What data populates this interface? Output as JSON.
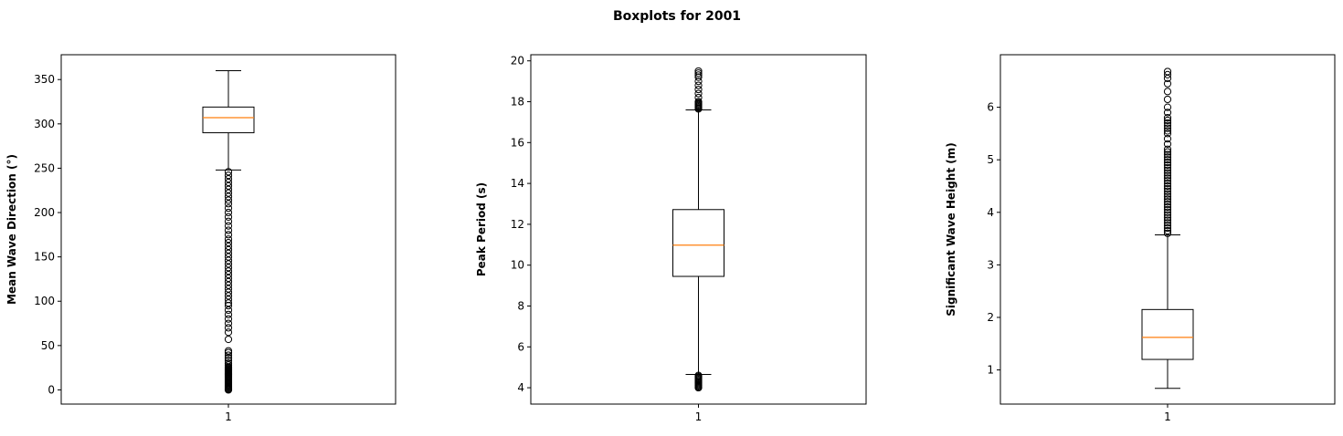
{
  "figure": {
    "title": "Boxplots for 2001"
  },
  "chart_data": [
    {
      "type": "boxplot",
      "ylabel": "Mean Wave Direction (°)",
      "categories": [
        "1"
      ],
      "ylim": [
        -16,
        378
      ],
      "yticks": [
        0,
        50,
        100,
        150,
        200,
        250,
        300,
        350
      ],
      "box": {
        "whisker_low": 248,
        "q1": 290,
        "median": 307,
        "q3": 319,
        "whisker_high": 360
      },
      "outliers": [
        0,
        1,
        2,
        3,
        4,
        5,
        6,
        7,
        8,
        9,
        10,
        11,
        12,
        13,
        14,
        15,
        16,
        17,
        18,
        19,
        20,
        21,
        22,
        23,
        24,
        25,
        26,
        28,
        30,
        33,
        36,
        39,
        42,
        44,
        57,
        65,
        70,
        75,
        80,
        85,
        90,
        95,
        98,
        102,
        106,
        110,
        114,
        118,
        122,
        126,
        130,
        134,
        138,
        142,
        146,
        150,
        154,
        158,
        162,
        166,
        170,
        175,
        180,
        185,
        190,
        195,
        200,
        205,
        210,
        214,
        218,
        222,
        226,
        230,
        234,
        238,
        242,
        246
      ]
    },
    {
      "type": "boxplot",
      "ylabel": "Peak Period (s)",
      "categories": [
        "1"
      ],
      "ylim": [
        3.2,
        20.3
      ],
      "yticks": [
        4,
        6,
        8,
        10,
        12,
        14,
        16,
        18,
        20
      ],
      "box": {
        "whisker_low": 4.65,
        "q1": 9.45,
        "median": 10.98,
        "q3": 12.72,
        "whisker_high": 17.6
      },
      "outliers": [
        4.0,
        4.05,
        4.1,
        4.15,
        4.2,
        4.25,
        4.3,
        4.35,
        4.4,
        4.45,
        4.5,
        4.55,
        4.6,
        17.65,
        17.7,
        17.75,
        17.8,
        17.85,
        17.9,
        17.95,
        18.0,
        18.2,
        18.4,
        18.6,
        18.8,
        19.0,
        19.2,
        19.3,
        19.4,
        19.5
      ]
    },
    {
      "type": "boxplot",
      "ylabel": "Significant Wave Height (m)",
      "categories": [
        "1"
      ],
      "ylim": [
        0.35,
        7.0
      ],
      "yticks": [
        1,
        2,
        3,
        4,
        5,
        6
      ],
      "box": {
        "whisker_low": 0.65,
        "q1": 1.2,
        "median": 1.62,
        "q3": 2.15,
        "whisker_high": 3.57
      },
      "outliers": [
        3.6,
        3.65,
        3.7,
        3.75,
        3.8,
        3.85,
        3.9,
        3.95,
        4.0,
        4.05,
        4.1,
        4.15,
        4.2,
        4.25,
        4.3,
        4.35,
        4.4,
        4.45,
        4.5,
        4.55,
        4.6,
        4.65,
        4.7,
        4.75,
        4.8,
        4.85,
        4.9,
        4.95,
        5.0,
        5.05,
        5.1,
        5.15,
        5.2,
        5.3,
        5.4,
        5.5,
        5.55,
        5.6,
        5.65,
        5.7,
        5.75,
        5.8,
        5.9,
        6.0,
        6.15,
        6.3,
        6.45,
        6.55,
        6.62,
        6.68
      ]
    }
  ],
  "colors": {
    "median": "#ff7f0e",
    "axes": "#000000",
    "background": "#ffffff"
  }
}
